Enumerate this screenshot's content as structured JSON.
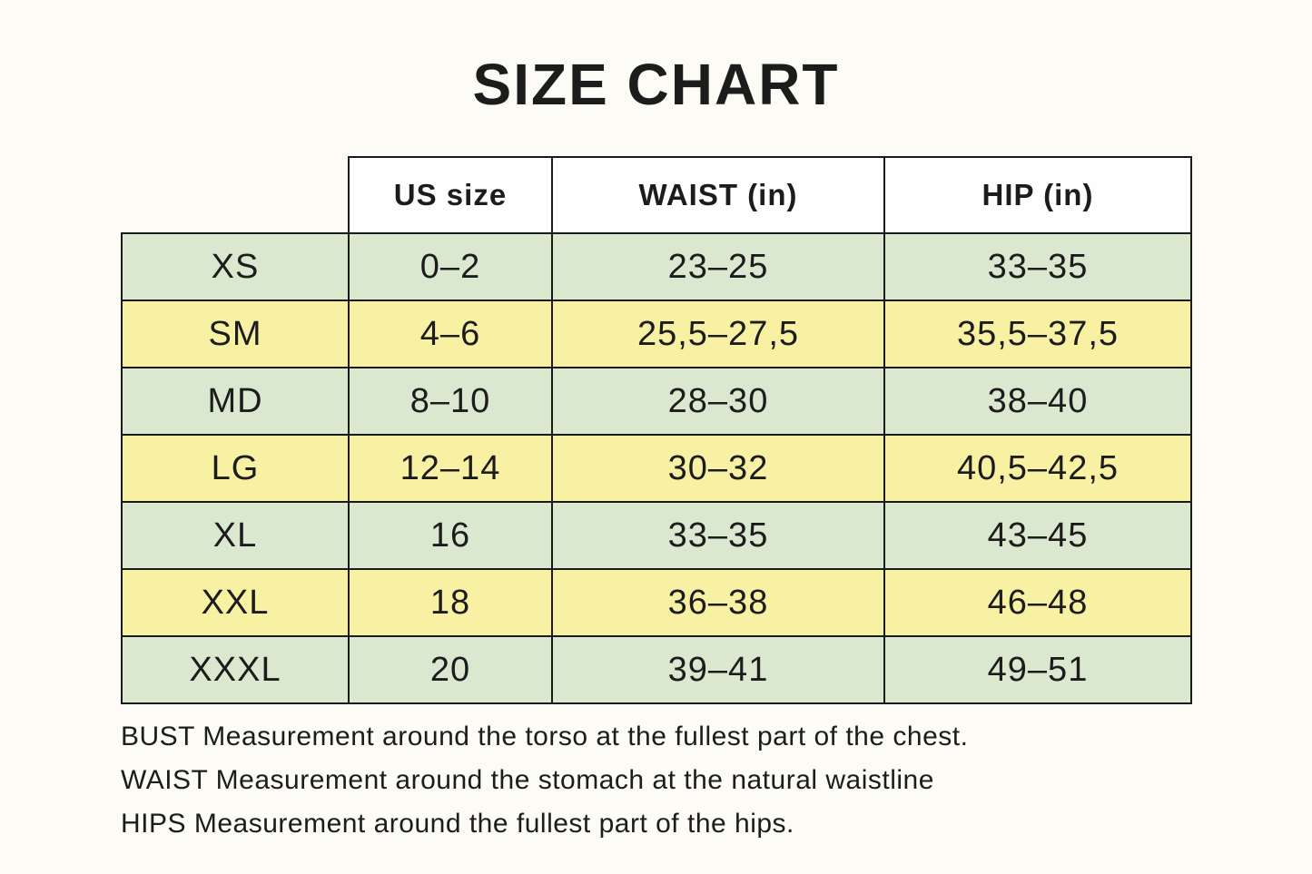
{
  "page": {
    "title": "SIZE CHART"
  },
  "chart_data": {
    "type": "table",
    "title": "SIZE CHART",
    "columns": [
      "",
      "US size",
      "WAIST (in)",
      "HIP (in)"
    ],
    "rows": [
      [
        "XS",
        "0–2",
        "23–25",
        "33–35"
      ],
      [
        "SM",
        "4–6",
        "25,5–27,5",
        "35,5–37,5"
      ],
      [
        "MD",
        "8–10",
        "28–30",
        "38–40"
      ],
      [
        "LG",
        "12–14",
        "30–32",
        "40,5–42,5"
      ],
      [
        "XL",
        "16",
        "33–35",
        "43–45"
      ],
      [
        "XXL",
        "18",
        "36–38",
        "46–48"
      ],
      [
        "XXXL",
        "20",
        "39–41",
        "49–51"
      ]
    ],
    "layout": {
      "striped": true,
      "stripe_order": [
        "green",
        "yellow"
      ],
      "header_over_columns": [
        1,
        2,
        3
      ],
      "grid": true
    },
    "notes": [
      "BUST Measurement around the torso at the fullest part of the chest.",
      "WAIST Measurement around the stomach at the natural waistline",
      "HIPS Measurement around the fullest part of the hips."
    ]
  },
  "colors": {
    "row_green": "#d9e8cf",
    "row_yellow": "#f8f1a4",
    "border": "#1a1a1a",
    "text": "#1c1c1c",
    "background": "#fcfbf5"
  }
}
